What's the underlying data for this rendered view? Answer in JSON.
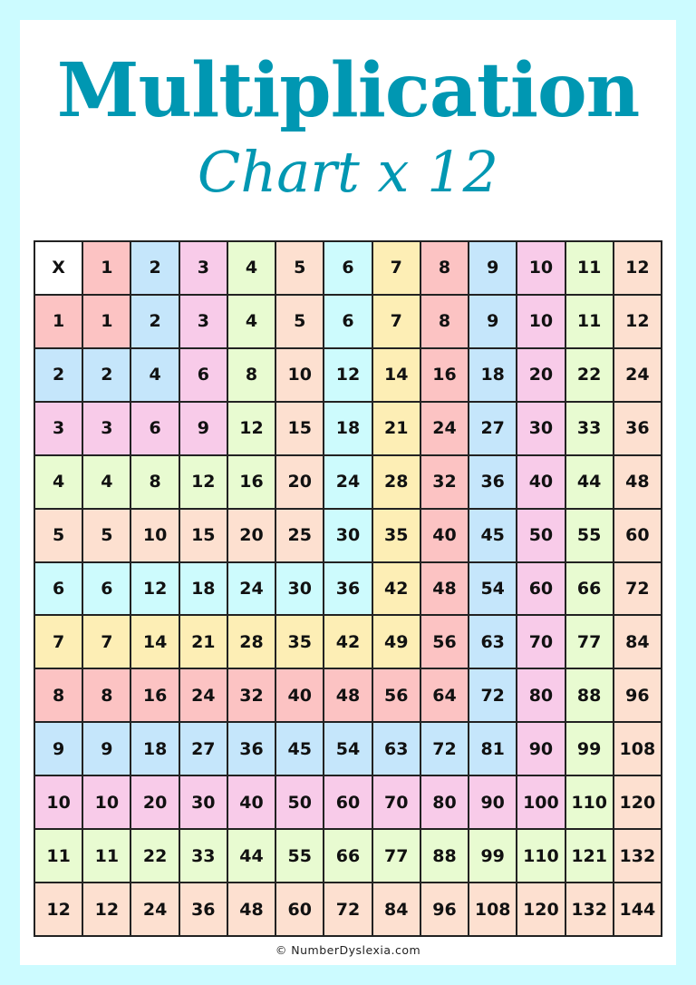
{
  "title": "Multiplication",
  "subtitle": "Chart x 12",
  "footer": "© NumberDyslexia.com",
  "colors": {
    "accent": "#0097b2",
    "background": "#ccfbff",
    "corner": "#ffffff",
    "palette": [
      "#fcc3c3",
      "#c5e6fb",
      "#f8cbe9",
      "#e8fbd1",
      "#fde0d0",
      "#cdfbfd",
      "#fdeeb5",
      "#fcc3c3",
      "#c5e6fb",
      "#f8cbe9",
      "#e8fbd1",
      "#fde0d0"
    ]
  },
  "table": {
    "corner": "X",
    "headers": [
      "1",
      "2",
      "3",
      "4",
      "5",
      "6",
      "7",
      "8",
      "9",
      "10",
      "11",
      "12"
    ],
    "rows": [
      [
        "1",
        "1",
        "2",
        "3",
        "4",
        "5",
        "6",
        "7",
        "8",
        "9",
        "10",
        "11",
        "12"
      ],
      [
        "2",
        "2",
        "4",
        "6",
        "8",
        "10",
        "12",
        "14",
        "16",
        "18",
        "20",
        "22",
        "24"
      ],
      [
        "3",
        "3",
        "6",
        "9",
        "12",
        "15",
        "18",
        "21",
        "24",
        "27",
        "30",
        "33",
        "36"
      ],
      [
        "4",
        "4",
        "8",
        "12",
        "16",
        "20",
        "24",
        "28",
        "32",
        "36",
        "40",
        "44",
        "48"
      ],
      [
        "5",
        "5",
        "10",
        "15",
        "20",
        "25",
        "30",
        "35",
        "40",
        "45",
        "50",
        "55",
        "60"
      ],
      [
        "6",
        "6",
        "12",
        "18",
        "24",
        "30",
        "36",
        "42",
        "48",
        "54",
        "60",
        "66",
        "72"
      ],
      [
        "7",
        "7",
        "14",
        "21",
        "28",
        "35",
        "42",
        "49",
        "56",
        "63",
        "70",
        "77",
        "84"
      ],
      [
        "8",
        "8",
        "16",
        "24",
        "32",
        "40",
        "48",
        "56",
        "64",
        "72",
        "80",
        "88",
        "96"
      ],
      [
        "9",
        "9",
        "18",
        "27",
        "36",
        "45",
        "54",
        "63",
        "72",
        "81",
        "90",
        "99",
        "108"
      ],
      [
        "10",
        "10",
        "20",
        "30",
        "40",
        "50",
        "60",
        "70",
        "80",
        "90",
        "100",
        "110",
        "120"
      ],
      [
        "11",
        "11",
        "22",
        "33",
        "44",
        "55",
        "66",
        "77",
        "88",
        "99",
        "110",
        "121",
        "132"
      ],
      [
        "12",
        "12",
        "24",
        "36",
        "48",
        "60",
        "72",
        "84",
        "96",
        "108",
        "120",
        "132",
        "144"
      ]
    ]
  }
}
